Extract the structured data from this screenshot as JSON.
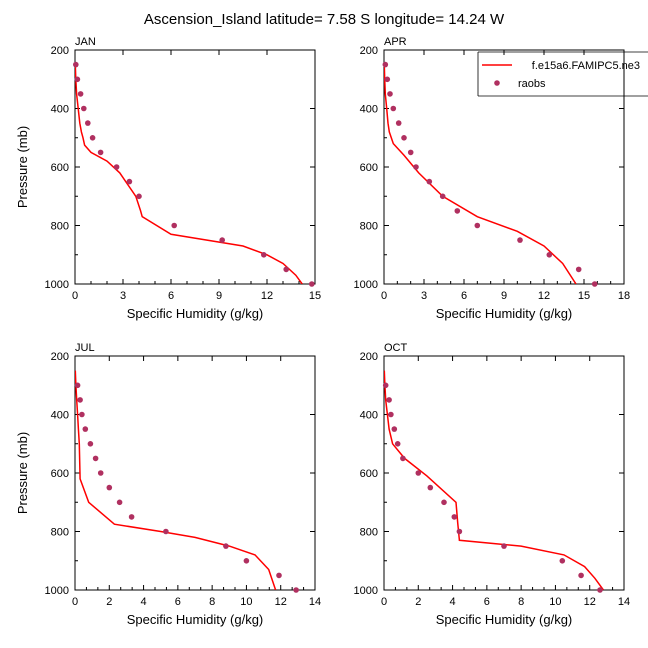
{
  "title": "Ascension_Island  latitude= 7.58 S longitude= 14.24 W",
  "colors": {
    "model": "#ff0000",
    "raobs": "#b03060",
    "axis": "#000000"
  },
  "legend": {
    "model_label": "f.e15a6.FAMIPC5.ne3",
    "obs_label": "raobs"
  },
  "chart_data": [
    {
      "type": "line",
      "panel": "JAN",
      "xlabel": "Specific Humidity (g/kg)",
      "ylabel": "Pressure (mb)",
      "xlim": [
        0,
        15
      ],
      "ylim": [
        1000,
        200
      ],
      "y_reversed": true,
      "xticks": [
        0,
        3,
        6,
        9,
        12,
        15
      ],
      "yticks": [
        200,
        400,
        600,
        800,
        1000
      ],
      "legend": false,
      "series": [
        {
          "name": "f.e15a6.FAMIPC5.ne3",
          "style": "line",
          "x": [
            0.02,
            0.05,
            0.1,
            0.2,
            0.3,
            0.4,
            0.5,
            0.6,
            1.0,
            2.0,
            2.8,
            3.8,
            4.1,
            4.2,
            6.0,
            10.5,
            12.0,
            13.0,
            13.8,
            14.2
          ],
          "y": [
            250,
            300,
            350,
            400,
            450,
            480,
            500,
            525,
            550,
            580,
            620,
            700,
            750,
            770,
            830,
            870,
            900,
            930,
            970,
            1000
          ]
        },
        {
          "name": "raobs",
          "style": "markers",
          "x": [
            0.05,
            0.15,
            0.35,
            0.55,
            0.8,
            1.1,
            1.6,
            2.6,
            3.4,
            4.0,
            6.2,
            9.2,
            11.8,
            13.2,
            14.8
          ],
          "y": [
            250,
            300,
            350,
            400,
            450,
            500,
            550,
            600,
            650,
            700,
            800,
            850,
            900,
            950,
            1000
          ]
        }
      ]
    },
    {
      "type": "line",
      "panel": "APR",
      "xlabel": "Specific Humidity (g/kg)",
      "ylabel": "",
      "xlim": [
        0,
        18
      ],
      "ylim": [
        1000,
        200
      ],
      "y_reversed": true,
      "xticks": [
        0,
        3,
        6,
        9,
        12,
        15,
        18
      ],
      "yticks": [
        200,
        400,
        600,
        800,
        1000
      ],
      "legend": true,
      "series": [
        {
          "name": "f.e15a6.FAMIPC5.ne3",
          "style": "line",
          "x": [
            0.02,
            0.05,
            0.1,
            0.2,
            0.3,
            0.4,
            0.7,
            1.5,
            2.6,
            4.4,
            7.0,
            10.0,
            12.0,
            13.4,
            14.4
          ],
          "y": [
            250,
            300,
            350,
            400,
            450,
            480,
            520,
            560,
            620,
            700,
            770,
            820,
            870,
            930,
            1000
          ]
        },
        {
          "name": "raobs",
          "style": "markers",
          "x": [
            0.1,
            0.25,
            0.45,
            0.7,
            1.1,
            1.5,
            2.0,
            2.4,
            3.4,
            4.4,
            5.5,
            7.0,
            10.2,
            12.4,
            14.6,
            15.8
          ],
          "y": [
            250,
            300,
            350,
            400,
            450,
            500,
            550,
            600,
            650,
            700,
            750,
            800,
            850,
            900,
            950,
            1000
          ]
        }
      ]
    },
    {
      "type": "line",
      "panel": "JUL",
      "xlabel": "Specific Humidity (g/kg)",
      "ylabel": "Pressure (mb)",
      "xlim": [
        0,
        14
      ],
      "ylim": [
        1000,
        200
      ],
      "y_reversed": true,
      "xticks": [
        0,
        2,
        4,
        6,
        8,
        10,
        12,
        14
      ],
      "yticks": [
        200,
        400,
        600,
        800,
        1000
      ],
      "legend": false,
      "series": [
        {
          "name": "f.e15a6.FAMIPC5.ne3",
          "style": "line",
          "x": [
            0.02,
            0.05,
            0.1,
            0.15,
            0.2,
            0.25,
            0.3,
            0.8,
            2.3,
            5.0,
            7.0,
            9.0,
            10.5,
            11.3,
            11.7
          ],
          "y": [
            250,
            300,
            350,
            400,
            450,
            500,
            620,
            700,
            775,
            800,
            820,
            850,
            880,
            930,
            1000
          ]
        },
        {
          "name": "raobs",
          "style": "markers",
          "x": [
            0.15,
            0.3,
            0.4,
            0.6,
            0.9,
            1.2,
            1.5,
            2.0,
            2.6,
            3.3,
            5.3,
            8.8,
            10.0,
            11.9,
            12.9
          ],
          "y": [
            300,
            350,
            400,
            450,
            500,
            550,
            600,
            650,
            700,
            750,
            800,
            850,
            900,
            950,
            1000
          ]
        }
      ]
    },
    {
      "type": "line",
      "panel": "OCT",
      "xlabel": "Specific Humidity (g/kg)",
      "ylabel": "",
      "xlim": [
        0,
        14
      ],
      "ylim": [
        1000,
        200
      ],
      "y_reversed": true,
      "xticks": [
        0,
        2,
        4,
        6,
        8,
        10,
        12,
        14
      ],
      "yticks": [
        200,
        400,
        600,
        800,
        1000
      ],
      "legend": false,
      "series": [
        {
          "name": "f.e15a6.FAMIPC5.ne3",
          "style": "line",
          "x": [
            0.02,
            0.05,
            0.1,
            0.2,
            0.3,
            0.5,
            1.2,
            2.5,
            4.2,
            4.3,
            4.4,
            8.0,
            10.5,
            11.7,
            12.3,
            12.8
          ],
          "y": [
            250,
            300,
            350,
            400,
            450,
            500,
            550,
            610,
            700,
            770,
            830,
            850,
            880,
            920,
            960,
            1000
          ]
        },
        {
          "name": "raobs",
          "style": "markers",
          "x": [
            0.1,
            0.3,
            0.4,
            0.6,
            0.8,
            1.1,
            2.0,
            2.7,
            3.5,
            4.1,
            4.4,
            7.0,
            10.4,
            11.5,
            12.6
          ],
          "y": [
            300,
            350,
            400,
            450,
            500,
            550,
            600,
            650,
            700,
            750,
            800,
            850,
            900,
            950,
            1000
          ]
        }
      ]
    }
  ]
}
